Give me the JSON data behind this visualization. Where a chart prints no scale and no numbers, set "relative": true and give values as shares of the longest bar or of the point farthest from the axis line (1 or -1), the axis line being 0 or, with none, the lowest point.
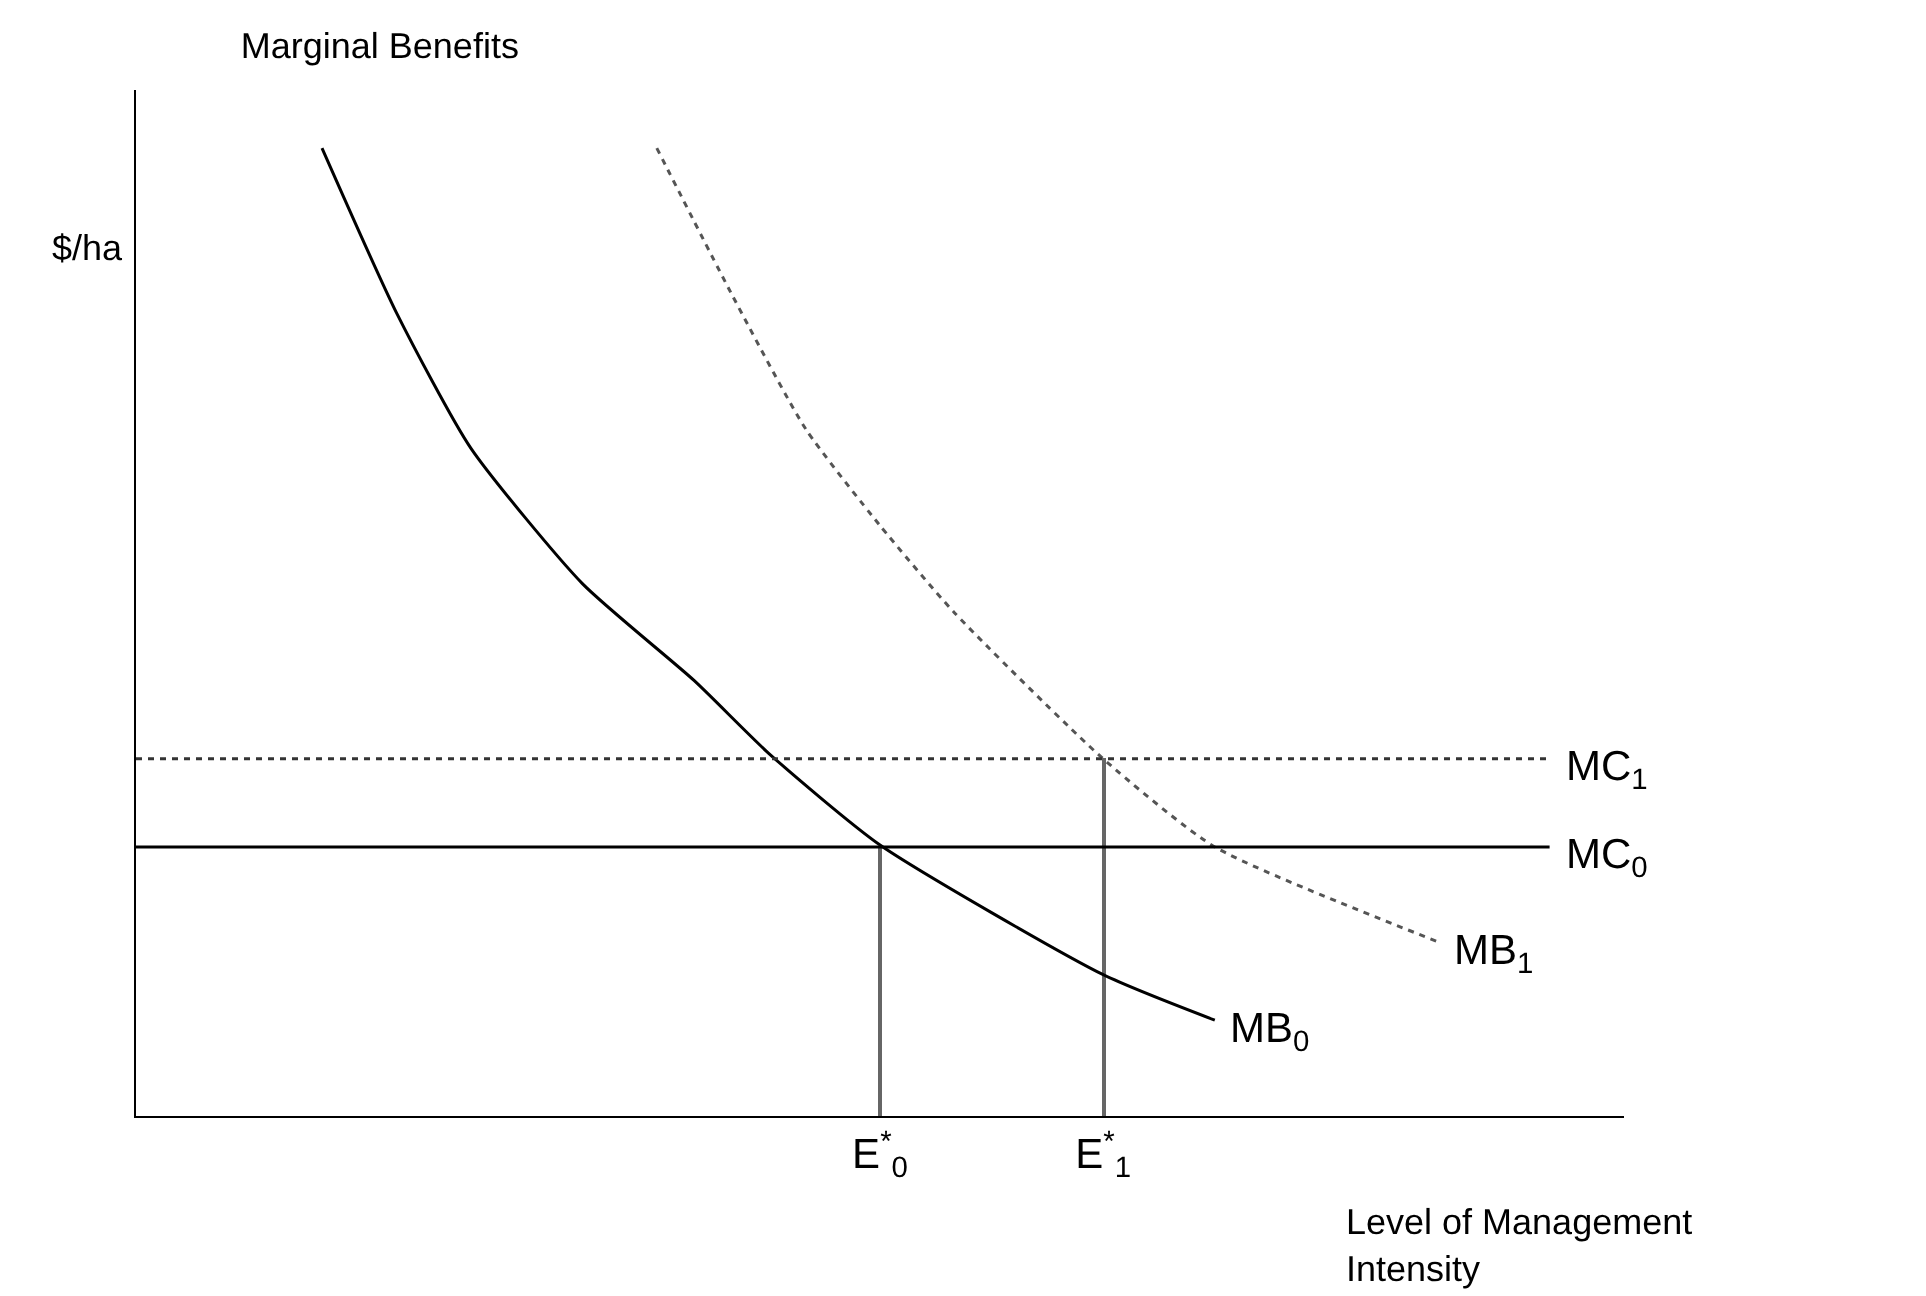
{
  "chart_data": {
    "type": "line",
    "title": "Marginal Benefits",
    "ylabel": "$/ha",
    "xlabel": "Level of Management Intensity",
    "relative": true,
    "legend": false,
    "marker": "none",
    "categories": [
      null,
      null,
      null,
      null,
      null,
      null,
      null,
      null,
      null,
      null,
      null,
      null,
      null,
      null,
      null,
      null,
      null,
      null,
      null,
      null,
      "E$^{*}$$_{0}$",
      null,
      null,
      null,
      null,
      null,
      "E$^{*}$$_{1}$",
      null,
      null,
      null,
      null,
      null,
      null,
      null,
      null,
      null,
      null,
      null,
      null,
      null,
      null
    ],
    "series": [
      {
        "name": "MB$_{0}$",
        "color": "#000000",
        "line_style": "solid",
        "values": [
          null,
          null,
          null,
          null,
          null,
          1.0,
          null,
          0.83,
          null,
          0.69,
          null,
          null,
          0.55,
          null,
          null,
          0.45,
          null,
          0.375,
          null,
          null,
          0.28,
          null,
          null,
          null,
          null,
          null,
          0.146,
          null,
          null,
          0.099,
          null,
          null,
          null,
          null,
          null,
          null,
          null,
          null,
          null,
          null,
          null
        ]
      },
      {
        "name": "MB$_{1}$",
        "color": "#555555",
        "line_style": "dotted",
        "values": [
          null,
          null,
          null,
          null,
          null,
          null,
          null,
          null,
          null,
          null,
          null,
          null,
          null,
          null,
          1.0,
          null,
          0.85,
          null,
          0.71,
          null,
          0.61,
          null,
          0.52,
          null,
          null,
          null,
          0.369,
          null,
          null,
          0.278,
          null,
          null,
          null,
          null,
          null,
          0.18,
          null,
          null,
          null,
          null,
          null
        ]
      },
      {
        "name": "MC$_{1}$",
        "color": "#333333",
        "line_style": "dotted",
        "values": [
          0.369,
          null,
          null,
          null,
          null,
          null,
          null,
          null,
          null,
          null,
          null,
          null,
          null,
          null,
          null,
          null,
          null,
          null,
          null,
          null,
          null,
          null,
          null,
          null,
          null,
          null,
          null,
          null,
          null,
          null,
          null,
          null,
          null,
          null,
          null,
          null,
          null,
          null,
          0.369,
          null,
          null
        ]
      },
      {
        "name": "MC$_{0}$",
        "color": "#000000",
        "line_style": "solid",
        "values": [
          0.278,
          null,
          null,
          null,
          null,
          null,
          null,
          null,
          null,
          null,
          null,
          null,
          null,
          null,
          null,
          null,
          null,
          null,
          null,
          null,
          null,
          null,
          null,
          null,
          null,
          null,
          null,
          null,
          null,
          null,
          null,
          null,
          null,
          null,
          null,
          null,
          null,
          null,
          0.278,
          null,
          null
        ]
      },
      {
        "type": "bar",
        "color": "#666666",
        "values": [
          null,
          null,
          null,
          null,
          null,
          null,
          null,
          null,
          null,
          null,
          null,
          null,
          null,
          null,
          null,
          null,
          null,
          null,
          null,
          null,
          0.278,
          null,
          null,
          null,
          null,
          null,
          0.369,
          null,
          null,
          null,
          null,
          null,
          null,
          null,
          null,
          null,
          null,
          null,
          null,
          null,
          null
        ]
      }
    ]
  }
}
